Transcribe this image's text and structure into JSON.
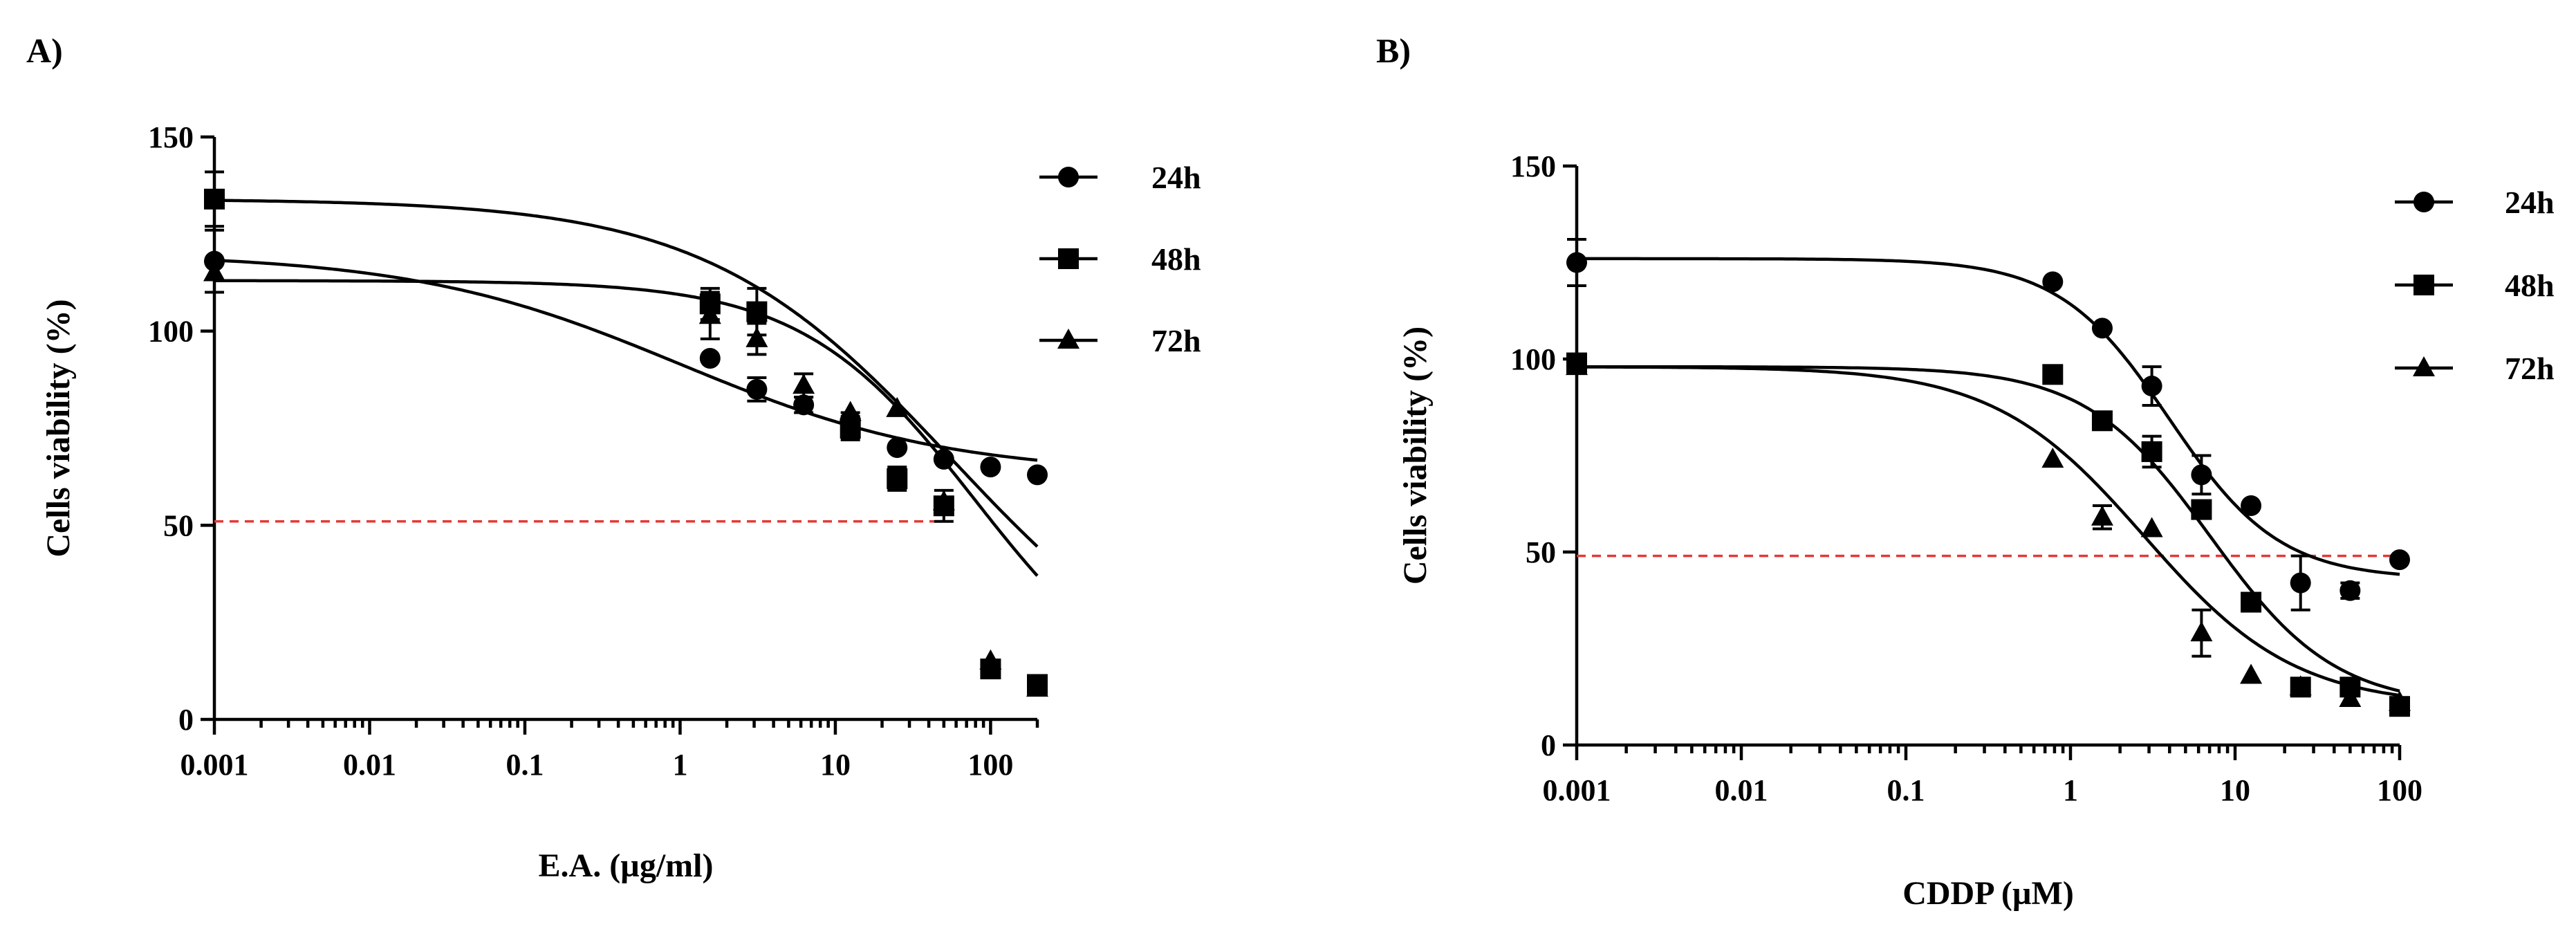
{
  "chart_data": [
    {
      "type": "line",
      "panel": "A)",
      "xlabel": "E.A. (µg/ml)",
      "ylabel": "Cells viability (%)",
      "xscale": "log",
      "xlim": [
        0.001,
        200
      ],
      "ylim": [
        0,
        150
      ],
      "xticks": [
        0.001,
        0.01,
        0.1,
        1,
        10,
        100
      ],
      "xtick_labels": [
        "0.001",
        "0.01",
        "0.1",
        "1",
        "10",
        "100"
      ],
      "yticks": [
        0,
        50,
        100,
        150
      ],
      "ytick_labels": [
        "0",
        "50",
        "100",
        "150"
      ],
      "reference_line": {
        "y": 51,
        "x_from": 0.001,
        "x_to": 50,
        "color": "#e53935",
        "style": "dashed"
      },
      "legend": {
        "position": "top-right"
      },
      "series": [
        {
          "name": "24h",
          "marker": "circle",
          "x": [
            0.001,
            1.56,
            3.12,
            6.25,
            12.5,
            25,
            50,
            100,
            200
          ],
          "y": [
            118,
            93,
            85,
            81,
            77,
            70,
            67,
            65,
            63
          ],
          "err": [
            8,
            0,
            3,
            2,
            2,
            0,
            0,
            0,
            0
          ],
          "fit": {
            "bottom": 63,
            "top": 120,
            "logEC50": 0.0,
            "hill": 0.5
          }
        },
        {
          "name": "48h",
          "marker": "square",
          "x": [
            0.001,
            1.56,
            3.12,
            12.5,
            25,
            50,
            100,
            200
          ],
          "y": [
            134,
            107,
            105,
            75,
            62,
            55,
            13,
            9
          ],
          "err": [
            7,
            4,
            6,
            3,
            3,
            4,
            2,
            0
          ],
          "fit": {
            "bottom": 0,
            "top": 134,
            "logEC50": 1.75,
            "hill": 0.55
          }
        },
        {
          "name": "72h",
          "marker": "triangle",
          "x": [
            0.001,
            1.56,
            3.12,
            6.25,
            12.5,
            25,
            50,
            100,
            200
          ],
          "y": [
            115,
            104,
            98,
            86,
            79,
            80,
            56,
            15,
            8
          ],
          "err": [
            0,
            6,
            4,
            3,
            0,
            0,
            0,
            0,
            0
          ],
          "fit": {
            "bottom": 0,
            "top": 113,
            "logEC50": 1.9,
            "hill": 0.78
          }
        }
      ]
    },
    {
      "type": "line",
      "panel": "B)",
      "xlabel": "CDDP (µM)",
      "ylabel": "Cells viability (%)",
      "xscale": "log",
      "xlim": [
        0.001,
        100
      ],
      "ylim": [
        0,
        150
      ],
      "xticks": [
        0.001,
        0.01,
        0.1,
        1,
        10,
        100
      ],
      "xtick_labels": [
        "0.001",
        "0.01",
        "0.1",
        "1",
        "10",
        "100"
      ],
      "yticks": [
        0,
        50,
        100,
        150
      ],
      "ytick_labels": [
        "0",
        "50",
        "100",
        "150"
      ],
      "reference_line": {
        "y": 49,
        "x_from": 0.001,
        "x_to": 100,
        "color": "#e53935",
        "style": "dashed"
      },
      "legend": {
        "position": "top-right"
      },
      "series": [
        {
          "name": "24h",
          "marker": "circle",
          "x": [
            0.001,
            0.78,
            1.56,
            3.12,
            6.25,
            12.5,
            25,
            50,
            100
          ],
          "y": [
            125,
            120,
            108,
            93,
            70,
            62,
            42,
            40,
            48
          ],
          "err": [
            6,
            0,
            0,
            5,
            5,
            0,
            7,
            2,
            0
          ],
          "fit": {
            "bottom": 43,
            "top": 126,
            "logEC50": 0.6,
            "hill": 1.3
          }
        },
        {
          "name": "48h",
          "marker": "square",
          "x": [
            0.001,
            0.78,
            1.56,
            3.12,
            6.25,
            12.5,
            25,
            50,
            100
          ],
          "y": [
            99,
            96,
            84,
            76,
            61,
            37,
            15,
            15,
            10
          ],
          "err": [
            2,
            0,
            0,
            4,
            0,
            0,
            0,
            0,
            0
          ],
          "fit": {
            "bottom": 10,
            "top": 98,
            "logEC50": 0.85,
            "hill": 1.15
          }
        },
        {
          "name": "72h",
          "marker": "triangle",
          "x": [
            0.001,
            0.78,
            1.56,
            3.12,
            6.25,
            12.5,
            25,
            50,
            100
          ],
          "y": [
            98,
            74,
            59,
            56,
            29,
            18,
            15,
            12,
            11
          ],
          "err": [
            0,
            0,
            3,
            0,
            6,
            0,
            0,
            0,
            0
          ],
          "fit": {
            "bottom": 10,
            "top": 98,
            "logEC50": 0.45,
            "hill": 0.95
          }
        }
      ]
    }
  ]
}
